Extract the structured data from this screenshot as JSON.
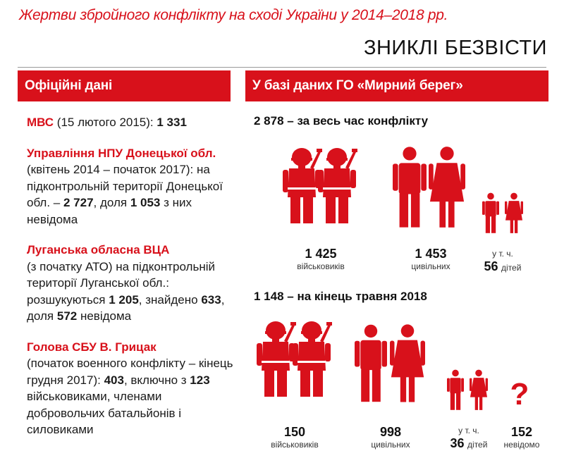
{
  "header": {
    "title": "Жертви збройного конфлікту на сході України у 2014–2018 рр.",
    "subtitle": "ЗНИКЛІ БЕЗВІСТИ"
  },
  "left_panel": {
    "heading": "Офіційні дані",
    "entries": [
      {
        "name": "МВС",
        "text_a": " (15 лютого 2015): ",
        "value": "1 331"
      },
      {
        "name": "Управління НПУ Донецької обл.",
        "text_a": "(квітень 2014 – початок 2017): на підконтрольній території Донецької обл. – ",
        "value_a": "2 727",
        "text_b": ", доля ",
        "value_b": "1 053",
        "text_c": " з них невідома"
      },
      {
        "name": "Луганська обласна ВЦА",
        "text_a": "(з початку АТО) на підконтрольній території Луганської обл.: розшукуються ",
        "value_a": "1 205",
        "text_b": ", знайдено ",
        "value_b": "633",
        "text_c": ", доля ",
        "value_c": "572",
        "text_d": " невідома"
      },
      {
        "name": "Голова СБУ В. Грицак",
        "text_a": "(початок военного конфлікту – кінець грудня 2017): ",
        "value_a": "403",
        "text_b": ", включно з ",
        "value_b": "123",
        "text_c": " військовиками, членами добровольчих батальйонів і силовиками"
      }
    ]
  },
  "right_panel": {
    "heading": "У базі даних ГО «Мирний берег»",
    "total": {
      "head_value": "2 878",
      "head_text": " – за весь час конфлікту",
      "military": {
        "value": "1 425",
        "label": "військовиків"
      },
      "civilians": {
        "value": "1 453",
        "label": "цивільних"
      },
      "children": {
        "prefix": "у т. ч.",
        "value": "56",
        "label": "дітей"
      }
    },
    "may2018": {
      "head_value": "1 148",
      "head_text": " – на кінець травня 2018",
      "military": {
        "value": "150",
        "label": "військовиків"
      },
      "civilians": {
        "value": "998",
        "label": "цивільних"
      },
      "children": {
        "prefix": "у т. ч.",
        "value": "36",
        "label": "дітей"
      },
      "unknown": {
        "symbol": "?",
        "value": "152",
        "label": "невідомо"
      }
    }
  },
  "colors": {
    "accent": "#d8111b",
    "text": "#1a1a1a",
    "background": "#ffffff"
  },
  "icons": [
    "soldier-icon",
    "man-icon",
    "woman-icon",
    "boy-icon",
    "girl-icon",
    "question-icon"
  ]
}
